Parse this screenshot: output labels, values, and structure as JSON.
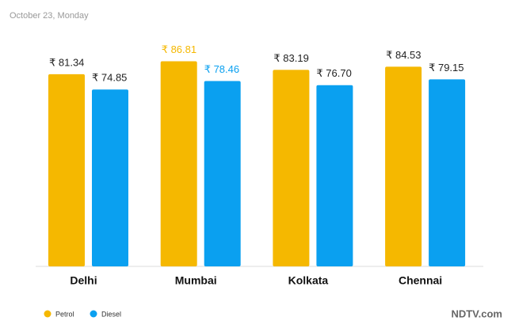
{
  "chart_data": {
    "type": "bar",
    "subtitle": "October 23, Monday",
    "categories": [
      "Delhi",
      "Mumbai",
      "Kolkata",
      "Chennai"
    ],
    "series": [
      {
        "name": "Petrol",
        "color": "#f5b800",
        "values": [
          81.34,
          86.81,
          83.19,
          84.53
        ],
        "value_labels": [
          "₹ 81.34",
          "₹ 86.81",
          "₹ 83.19",
          "₹ 84.53"
        ]
      },
      {
        "name": "Diesel",
        "color": "#0aa0f0",
        "values": [
          74.85,
          78.46,
          76.7,
          79.15
        ],
        "value_labels": [
          "₹ 74.85",
          "₹ 78.46",
          "₹ 76.70",
          "₹ 79.15"
        ]
      }
    ],
    "highlight": "Mumbai",
    "ylim": [
      0,
      90
    ],
    "legend": "bottom-left",
    "source": "NDTV.com"
  }
}
